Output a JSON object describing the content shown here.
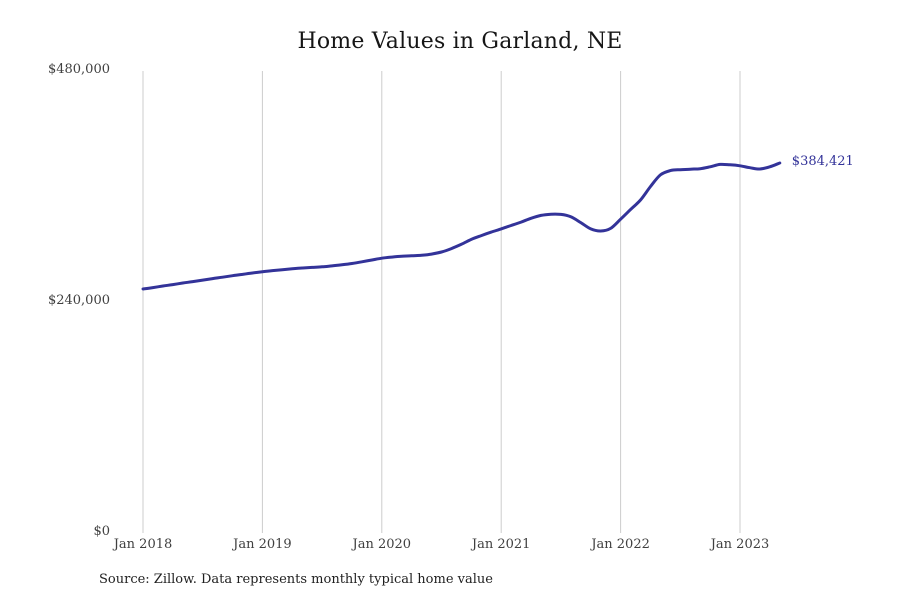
{
  "title": "Home Values in Garland, NE",
  "source_note": "Source: Zillow. Data represents monthly typical home value",
  "colors": {
    "line": "#333399",
    "end_label": "#333399",
    "grid": "#cccccc",
    "axis_text": "#404040",
    "title_text": "#161616"
  },
  "chart_data": {
    "type": "line",
    "title": "Home Values in Garland, NE",
    "ylabel": "",
    "xlabel": "",
    "ylim": [
      0,
      480000
    ],
    "grid": "vertical-only",
    "y_ticks": [
      {
        "label": "$480,000",
        "value": 480000
      },
      {
        "label": "$240,000",
        "value": 240000
      },
      {
        "label": "$0",
        "value": 0
      }
    ],
    "x_tick_labels": [
      "Jan 2018",
      "Jan 2019",
      "Jan 2020",
      "Jan 2021",
      "Jan 2022",
      "Jan 2023"
    ],
    "end_label": "$384,421",
    "months": [
      "2018-01",
      "2018-02",
      "2018-03",
      "2018-04",
      "2018-05",
      "2018-06",
      "2018-07",
      "2018-08",
      "2018-09",
      "2018-10",
      "2018-11",
      "2018-12",
      "2019-01",
      "2019-02",
      "2019-03",
      "2019-04",
      "2019-05",
      "2019-06",
      "2019-07",
      "2019-08",
      "2019-09",
      "2019-10",
      "2019-11",
      "2019-12",
      "2020-01",
      "2020-02",
      "2020-03",
      "2020-04",
      "2020-05",
      "2020-06",
      "2020-07",
      "2020-08",
      "2020-09",
      "2020-10",
      "2020-11",
      "2020-12",
      "2021-01",
      "2021-02",
      "2021-03",
      "2021-04",
      "2021-05",
      "2021-06",
      "2021-07",
      "2021-08",
      "2021-09",
      "2021-10",
      "2021-11",
      "2021-12",
      "2022-01",
      "2022-02",
      "2022-03",
      "2022-04",
      "2022-05",
      "2022-06",
      "2022-07",
      "2022-08",
      "2022-09",
      "2022-10",
      "2022-11",
      "2022-12",
      "2023-01",
      "2023-02",
      "2023-03",
      "2023-04",
      "2023-05"
    ],
    "values": [
      253500,
      255000,
      256600,
      258100,
      259700,
      261200,
      262800,
      264300,
      265800,
      267300,
      268700,
      270100,
      271500,
      272600,
      273600,
      274500,
      275300,
      276000,
      276600,
      277500,
      278600,
      280000,
      281800,
      283600,
      285500,
      286700,
      287500,
      288000,
      288500,
      289800,
      292000,
      295500,
      300000,
      305000,
      309000,
      312600,
      316000,
      319500,
      323000,
      327000,
      330000,
      331200,
      331000,
      328500,
      322500,
      316000,
      313800,
      316500,
      326000,
      336000,
      346000,
      360000,
      372000,
      376500,
      377500,
      378000,
      378500,
      380500,
      383000,
      382500,
      381500,
      379500,
      378200,
      380500,
      384421
    ]
  }
}
